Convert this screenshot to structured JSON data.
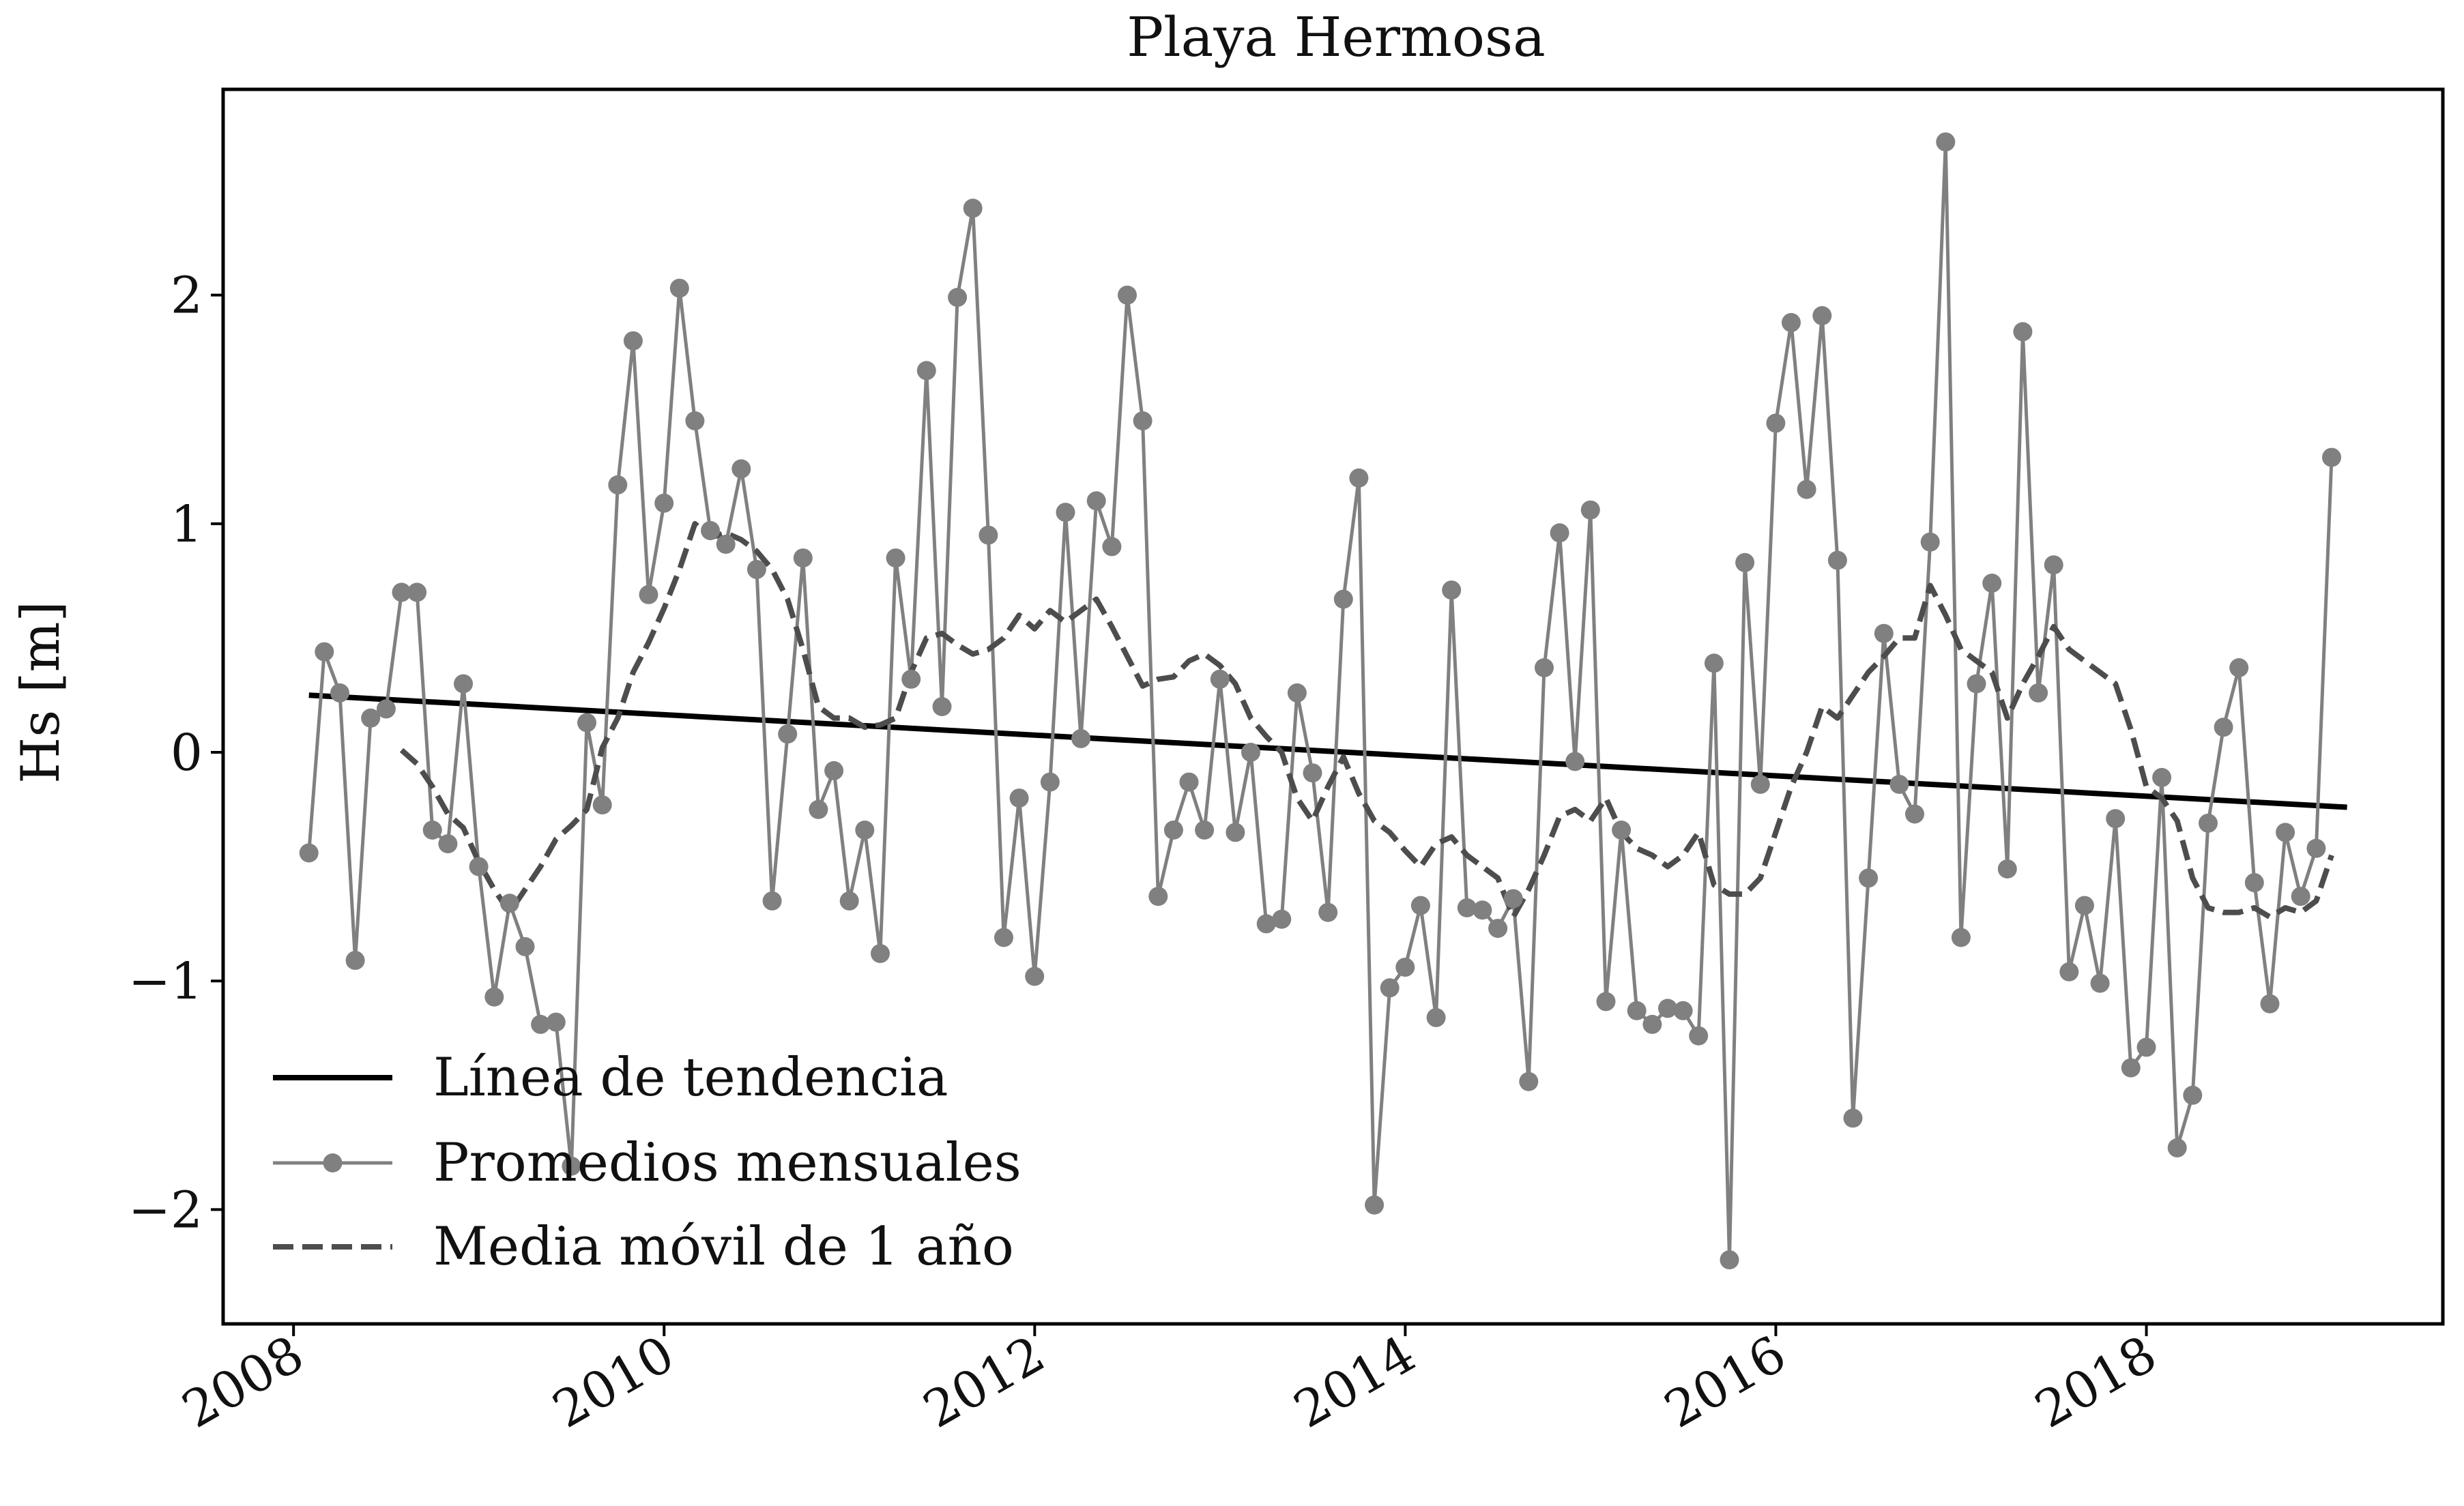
{
  "chart_data": {
    "type": "line",
    "title": "Playa Hermosa",
    "ylabel": "Hs [m]",
    "xlabel": "",
    "xlim": [
      2007.62,
      2019.6
    ],
    "ylim": [
      -2.5,
      2.9
    ],
    "x_ticks": [
      2008,
      2010,
      2012,
      2014,
      2016,
      2018
    ],
    "x_tick_labels": [
      "2008",
      "2010",
      "2012",
      "2014",
      "2016",
      "2018"
    ],
    "y_ticks": [
      -2,
      -1,
      0,
      1,
      2
    ],
    "y_tick_labels": [
      "−2",
      "−1",
      "0",
      "1",
      "2"
    ],
    "grid": false,
    "legend_position": "lower-left",
    "legend": [
      {
        "label": "Línea de tendencia",
        "style": "solid-thick",
        "color": "#000000"
      },
      {
        "label": "Promedios mensuales",
        "style": "line-marker",
        "color": "#808080"
      },
      {
        "label": "Media móvil de 1 año",
        "style": "dashed",
        "color": "#4d4d4d"
      }
    ],
    "series": [
      {
        "name": "Promedios mensuales",
        "color": "#808080",
        "start": 2008.083,
        "step_years": 0.0833333,
        "values": [
          -0.44,
          0.44,
          0.26,
          -0.91,
          0.15,
          0.19,
          0.7,
          0.7,
          -0.34,
          -0.4,
          0.3,
          -0.5,
          -1.07,
          -0.66,
          -0.85,
          -1.19,
          -1.18,
          -1.81,
          0.13,
          -0.23,
          1.17,
          1.8,
          0.69,
          1.09,
          2.03,
          1.45,
          0.97,
          0.91,
          1.24,
          0.8,
          -0.65,
          0.08,
          0.85,
          -0.25,
          -0.08,
          -0.65,
          -0.34,
          -0.88,
          0.85,
          0.32,
          1.67,
          0.2,
          1.99,
          2.38,
          0.95,
          -0.81,
          -0.2,
          -0.98,
          -0.13,
          1.05,
          0.06,
          1.1,
          0.9,
          2.0,
          1.45,
          -0.63,
          -0.34,
          -0.13,
          -0.34,
          0.32,
          -0.35,
          0.0,
          -0.75,
          -0.73,
          0.26,
          -0.09,
          -0.7,
          0.67,
          1.2,
          -1.98,
          -1.03,
          -0.94,
          -0.67,
          -1.16,
          0.71,
          -0.68,
          -0.69,
          -0.77,
          -0.64,
          -1.44,
          0.37,
          0.96,
          -0.04,
          1.06,
          -1.09,
          -0.34,
          -1.13,
          -1.19,
          -1.12,
          -1.13,
          -1.24,
          0.39,
          -2.22,
          0.83,
          -0.14,
          1.44,
          1.88,
          1.15,
          1.91,
          0.84,
          -1.6,
          -0.55,
          0.52,
          -0.14,
          -0.27,
          0.92,
          2.67,
          -0.81,
          0.3,
          0.74,
          -0.51,
          1.84,
          0.26,
          0.82,
          -0.96,
          -0.67,
          -1.01,
          -0.29,
          -1.38,
          -1.29,
          -0.11,
          -1.73,
          -1.5,
          -0.31,
          0.11,
          0.37,
          -0.57,
          -1.1,
          -0.35,
          -0.63,
          -0.42,
          1.29
        ]
      },
      {
        "name": "Media móvil de 1 año",
        "color": "#4d4d4d",
        "start": 2008.583,
        "step_years": 0.0833333,
        "values": [
          0.01,
          -0.05,
          -0.15,
          -0.27,
          -0.33,
          -0.48,
          -0.6,
          -0.7,
          -0.6,
          -0.5,
          -0.38,
          -0.32,
          -0.25,
          0.02,
          0.15,
          0.35,
          0.48,
          0.63,
          0.8,
          1.0,
          0.94,
          0.96,
          0.93,
          0.88,
          0.8,
          0.67,
          0.45,
          0.2,
          0.15,
          0.15,
          0.11,
          0.12,
          0.15,
          0.35,
          0.5,
          0.52,
          0.47,
          0.43,
          0.45,
          0.5,
          0.6,
          0.54,
          0.62,
          0.57,
          0.62,
          0.67,
          0.55,
          0.42,
          0.29,
          0.32,
          0.33,
          0.4,
          0.43,
          0.38,
          0.3,
          0.15,
          0.07,
          0.0,
          -0.2,
          -0.3,
          -0.15,
          -0.02,
          -0.18,
          -0.3,
          -0.35,
          -0.43,
          -0.5,
          -0.4,
          -0.37,
          -0.45,
          -0.5,
          -0.55,
          -0.72,
          -0.6,
          -0.45,
          -0.28,
          -0.25,
          -0.3,
          -0.2,
          -0.35,
          -0.42,
          -0.45,
          -0.5,
          -0.45,
          -0.35,
          -0.58,
          -0.62,
          -0.62,
          -0.55,
          -0.35,
          -0.15,
          0.0,
          0.2,
          0.15,
          0.25,
          0.35,
          0.42,
          0.5,
          0.5,
          0.73,
          0.6,
          0.45,
          0.4,
          0.35,
          0.15,
          0.3,
          0.42,
          0.55,
          0.45,
          0.4,
          0.35,
          0.3,
          0.1,
          -0.15,
          -0.2,
          -0.3,
          -0.55,
          -0.68,
          -0.7,
          -0.7,
          -0.68,
          -0.72,
          -0.68,
          -0.7,
          -0.65,
          -0.45
        ]
      },
      {
        "name": "Línea de tendencia",
        "color": "#000000",
        "x": [
          2008.083,
          2019.083
        ],
        "values": [
          0.25,
          -0.24
        ]
      }
    ]
  }
}
